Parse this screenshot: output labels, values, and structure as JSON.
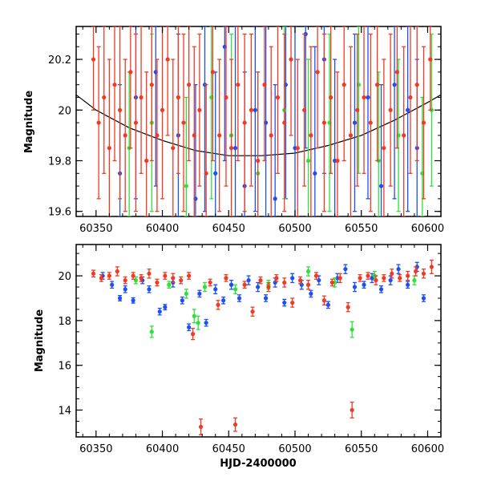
{
  "chart_data": [
    {
      "type": "scatter",
      "panel": "top",
      "ylabel": "Magnitude",
      "xlabel": "",
      "xlim": [
        60335,
        60610
      ],
      "ylim": [
        20.33,
        19.58
      ],
      "y_inverted": true,
      "xticks": [
        60350,
        60400,
        60450,
        60500,
        60550,
        60600
      ],
      "xtick_labels": [
        "60350",
        "60400",
        "60450",
        "60500",
        "60550",
        "60600"
      ],
      "yticks": [
        19.6,
        19.8,
        20,
        20.2
      ],
      "ytick_labels": [
        "19.6",
        "19.8",
        "20",
        "20.2"
      ],
      "grid": false,
      "legend": "none",
      "model_curve": {
        "color": "#000000",
        "x": [
          60335,
          60350,
          60375,
          60400,
          60425,
          60450,
          60475,
          60500,
          60525,
          60550,
          60575,
          60600,
          60610
        ],
        "y": [
          20.06,
          20.0,
          19.93,
          19.88,
          19.84,
          19.82,
          19.82,
          19.83,
          19.86,
          19.9,
          19.96,
          20.03,
          20.06
        ]
      },
      "series": [
        {
          "color": "#1e4ff0",
          "x": [
            60368,
            60380,
            60395,
            60412,
            60425,
            60432,
            60440,
            60447,
            60455,
            60462,
            60470,
            60478,
            60485,
            60493,
            60500,
            60508,
            60515,
            60522,
            60530,
            60545,
            60555,
            60565,
            60575,
            60585,
            60592
          ],
          "y": [
            19.75,
            20.05,
            20.15,
            19.9,
            19.65,
            20.1,
            19.75,
            20.25,
            19.85,
            19.7,
            20.0,
            19.95,
            19.65,
            20.1,
            19.85,
            20.3,
            19.75,
            20.2,
            19.8,
            19.95,
            20.05,
            19.7,
            20.1,
            20.0,
            19.85
          ],
          "err": [
            0.35,
            0.4,
            0.45,
            0.4,
            0.45,
            0.5,
            0.4,
            0.45,
            0.5,
            0.45,
            0.4,
            0.5,
            0.45,
            0.45,
            0.5,
            0.45,
            0.5,
            0.45,
            0.4,
            0.35,
            0.4,
            0.4,
            0.45,
            0.4,
            0.35
          ]
        },
        {
          "color": "#2ee03a",
          "x": [
            60375,
            60392,
            60418,
            60437,
            60452,
            60472,
            60492,
            60510,
            60526,
            60548,
            60563,
            60578,
            60596,
            60603
          ],
          "y": [
            19.85,
            19.95,
            19.7,
            20.05,
            19.9,
            19.75,
            20.0,
            19.8,
            19.95,
            20.1,
            19.8,
            19.9,
            19.75,
            20.0
          ],
          "err": [
            0.3,
            0.35,
            0.35,
            0.4,
            0.4,
            0.4,
            0.35,
            0.4,
            0.35,
            0.35,
            0.35,
            0.3,
            0.3,
            0.3
          ]
        },
        {
          "color": "#f03a24",
          "x": [
            60348,
            60352,
            60356,
            60360,
            60364,
            60368,
            60372,
            60376,
            60380,
            60384,
            60388,
            60392,
            60396,
            60400,
            60404,
            60408,
            60412,
            60416,
            60420,
            60424,
            60428,
            60433,
            60438,
            60443,
            60448,
            60452,
            60457,
            60462,
            60467,
            60472,
            60477,
            60482,
            60487,
            60492,
            60497,
            60502,
            60507,
            60512,
            60517,
            60522,
            60527,
            60532,
            60537,
            60542,
            60547,
            60552,
            60557,
            60562,
            60567,
            60572,
            60577,
            60582,
            60587,
            60592,
            60597,
            60602
          ],
          "y": [
            20.2,
            19.95,
            20.05,
            19.85,
            20.1,
            20.0,
            19.9,
            20.15,
            19.95,
            20.05,
            19.8,
            20.1,
            19.9,
            20.0,
            20.2,
            19.85,
            20.05,
            19.95,
            20.1,
            19.9,
            20.0,
            19.75,
            20.15,
            19.9,
            20.05,
            19.85,
            20.1,
            19.95,
            20.0,
            19.8,
            20.1,
            19.9,
            20.05,
            19.95,
            20.2,
            19.85,
            20.0,
            19.9,
            20.15,
            19.95,
            20.05,
            19.8,
            20.1,
            19.9,
            20.0,
            20.05,
            19.95,
            20.1,
            19.85,
            20.0,
            20.15,
            19.9,
            20.05,
            20.1,
            19.95,
            20.2
          ],
          "err": [
            0.2,
            0.3,
            0.3,
            0.35,
            0.3,
            0.35,
            0.3,
            0.3,
            0.35,
            0.3,
            0.35,
            0.3,
            0.3,
            0.35,
            0.3,
            0.35,
            0.3,
            0.35,
            0.3,
            0.35,
            0.3,
            0.35,
            0.35,
            0.3,
            0.35,
            0.35,
            0.3,
            0.35,
            0.3,
            0.35,
            0.3,
            0.35,
            0.3,
            0.35,
            0.3,
            0.35,
            0.3,
            0.35,
            0.3,
            0.35,
            0.3,
            0.35,
            0.3,
            0.35,
            0.3,
            0.3,
            0.35,
            0.3,
            0.35,
            0.3,
            0.3,
            0.35,
            0.3,
            0.3,
            0.3,
            0.2
          ]
        }
      ]
    },
    {
      "type": "scatter",
      "panel": "bottom",
      "ylabel": "Magnitude",
      "xlabel": "HJD-2400000",
      "xlim": [
        60335,
        60610
      ],
      "ylim": [
        21.4,
        12.8
      ],
      "y_inverted": true,
      "xticks": [
        60350,
        60400,
        60450,
        60500,
        60550,
        60600
      ],
      "xtick_labels": [
        "60350",
        "60400",
        "60450",
        "60500",
        "60550",
        "60600"
      ],
      "yticks": [
        14,
        16,
        18,
        20
      ],
      "ytick_labels": [
        "14",
        "16",
        "18",
        "20"
      ],
      "grid": false,
      "legend": "none",
      "series": [
        {
          "color": "#1e4ff0",
          "x": [
            60355,
            60362,
            60368,
            60372,
            60378,
            60385,
            60390,
            60398,
            60402,
            60408,
            60415,
            60420,
            60428,
            60433,
            60440,
            60446,
            60452,
            60458,
            60465,
            60472,
            60478,
            60485,
            60492,
            60498,
            60505,
            60512,
            60518,
            60525,
            60532,
            60538,
            60545,
            60552,
            60558,
            60565,
            60572,
            60578,
            60585,
            60592,
            60597
          ],
          "y": [
            20.0,
            19.6,
            19.0,
            19.4,
            18.9,
            19.8,
            19.4,
            18.4,
            18.6,
            19.7,
            18.9,
            17.7,
            19.2,
            17.9,
            19.4,
            18.9,
            19.6,
            19.0,
            19.8,
            19.5,
            19.0,
            19.7,
            18.8,
            19.9,
            19.6,
            19.2,
            19.8,
            18.7,
            19.9,
            20.3,
            19.5,
            19.6,
            19.9,
            19.4,
            19.8,
            20.3,
            19.6,
            20.4,
            19.0
          ],
          "err": [
            0.15,
            0.15,
            0.12,
            0.15,
            0.12,
            0.15,
            0.15,
            0.15,
            0.12,
            0.2,
            0.15,
            0.15,
            0.15,
            0.15,
            0.2,
            0.15,
            0.2,
            0.15,
            0.2,
            0.2,
            0.15,
            0.2,
            0.15,
            0.2,
            0.2,
            0.15,
            0.2,
            0.15,
            0.2,
            0.2,
            0.2,
            0.15,
            0.2,
            0.15,
            0.2,
            0.2,
            0.15,
            0.2,
            0.15
          ]
        },
        {
          "color": "#2ee03a",
          "x": [
            60380,
            60392,
            60405,
            60418,
            60424,
            60427,
            60432,
            60455,
            60480,
            60510,
            60530,
            60543,
            60560,
            60590
          ],
          "y": [
            19.8,
            17.5,
            19.6,
            19.2,
            18.2,
            17.9,
            19.5,
            19.4,
            19.6,
            20.2,
            19.7,
            17.6,
            20.0,
            19.8
          ],
          "err": [
            0.15,
            0.25,
            0.15,
            0.2,
            0.3,
            0.3,
            0.2,
            0.2,
            0.2,
            0.2,
            0.2,
            0.35,
            0.2,
            0.2
          ]
        },
        {
          "color": "#f03a24",
          "x": [
            60348,
            60354,
            60360,
            60366,
            60372,
            60378,
            60384,
            60390,
            60396,
            60402,
            60408,
            60414,
            60420,
            60423,
            60429,
            60436,
            60442,
            60448,
            60455,
            60462,
            60468,
            60474,
            60480,
            60486,
            60492,
            60498,
            60504,
            60510,
            60516,
            60522,
            60528,
            60534,
            60540,
            60543,
            60549,
            60555,
            60561,
            60567,
            60573,
            60579,
            60585,
            60591,
            60597,
            60603
          ],
          "y": [
            20.1,
            19.9,
            20.0,
            20.2,
            19.8,
            20.0,
            19.9,
            20.1,
            19.7,
            20.0,
            19.9,
            19.8,
            20.0,
            17.4,
            13.25,
            19.7,
            18.7,
            19.9,
            13.35,
            19.6,
            18.4,
            19.8,
            19.5,
            19.9,
            19.7,
            18.8,
            19.8,
            19.6,
            20.0,
            18.9,
            19.7,
            19.9,
            18.6,
            14.0,
            19.9,
            20.0,
            19.8,
            19.9,
            20.1,
            19.9,
            20.0,
            20.2,
            20.1,
            20.4
          ],
          "err": [
            0.15,
            0.15,
            0.15,
            0.2,
            0.15,
            0.15,
            0.15,
            0.2,
            0.15,
            0.15,
            0.2,
            0.15,
            0.15,
            0.25,
            0.35,
            0.15,
            0.2,
            0.15,
            0.3,
            0.15,
            0.2,
            0.15,
            0.2,
            0.15,
            0.2,
            0.2,
            0.15,
            0.2,
            0.15,
            0.2,
            0.15,
            0.2,
            0.2,
            0.35,
            0.15,
            0.15,
            0.2,
            0.15,
            0.2,
            0.15,
            0.2,
            0.2,
            0.2,
            0.3
          ]
        }
      ]
    }
  ]
}
